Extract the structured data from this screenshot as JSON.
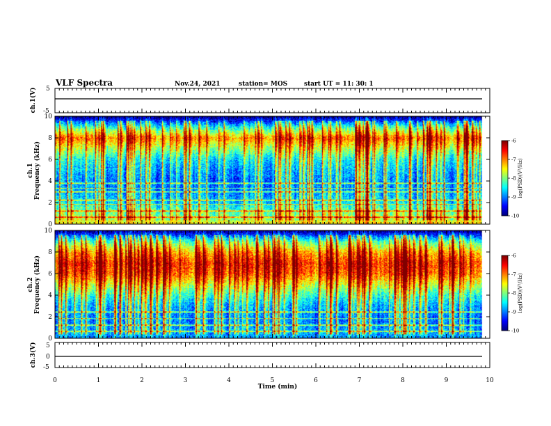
{
  "header": {
    "title": "VLF Spectra",
    "date": "Nov.24, 2021",
    "station": "station= MOS",
    "start_ut": "start  UT =   11: 30: 1"
  },
  "chart_data": [
    {
      "type": "line",
      "panel": "ch1-waveform",
      "ylabel": "ch.1(V)",
      "ylim": [
        -5,
        5
      ],
      "yticks": [
        "5",
        "-5"
      ],
      "xlim": [
        0,
        10
      ],
      "series": [
        {
          "values": [
            0,
            0,
            0,
            0,
            0,
            0,
            0,
            0,
            0,
            0,
            0
          ]
        }
      ]
    },
    {
      "type": "heatmap",
      "panel": "ch1-spectrogram",
      "ylabel": "Frequency (kHz)",
      "channel": "ch.1",
      "ylim": [
        0,
        10
      ],
      "yticks": [
        "0",
        "2",
        "4",
        "6",
        "8",
        "10"
      ],
      "xlim": [
        0,
        10
      ],
      "colorbar": {
        "label": "log(PSD)(V²/Hz)",
        "range": [
          -10,
          -6
        ],
        "ticks": [
          "-6",
          "-7",
          "-8",
          "-9",
          "-10"
        ]
      },
      "freq_profile_khz": [
        0,
        0.5,
        1,
        1.5,
        2,
        3,
        4,
        5,
        6,
        7,
        8,
        9,
        10
      ],
      "freq_profile_logpsd": [
        -7.5,
        -7.8,
        -8.0,
        -8.3,
        -8.6,
        -8.9,
        -9.0,
        -8.8,
        -8.5,
        -7.8,
        -7.0,
        -8.3,
        -10.0
      ]
    },
    {
      "type": "heatmap",
      "panel": "ch2-spectrogram",
      "ylabel": "Frequency (kHz)",
      "channel": "ch.2",
      "ylim": [
        0,
        10
      ],
      "yticks": [
        "0",
        "2",
        "4",
        "6",
        "8",
        "10"
      ],
      "xlim": [
        0,
        10
      ],
      "colorbar": {
        "label": "log(PSD)(V²/Hz)",
        "range": [
          -10,
          -6
        ],
        "ticks": [
          "-6",
          "-7",
          "-8",
          "-9",
          "-10"
        ]
      },
      "freq_profile_khz": [
        0,
        0.5,
        1,
        1.5,
        2,
        3,
        4,
        5,
        6,
        7,
        8,
        9,
        10
      ],
      "freq_profile_logpsd": [
        -9.0,
        -8.8,
        -8.9,
        -9.0,
        -9.0,
        -8.8,
        -8.3,
        -7.6,
        -6.9,
        -6.7,
        -7.2,
        -8.2,
        -10.0
      ]
    },
    {
      "type": "line",
      "panel": "ch3-waveform",
      "ylabel": "ch.3(V)",
      "ylim": [
        -5,
        5
      ],
      "yticks": [
        "5",
        "0",
        "-5"
      ],
      "xlim": [
        0,
        10
      ],
      "xlabel": "Time  (min)",
      "xticks": [
        "0",
        "1",
        "2",
        "3",
        "4",
        "5",
        "6",
        "7",
        "8",
        "9",
        "10"
      ],
      "series": [
        {
          "values": [
            0,
            0,
            0,
            0,
            0,
            0,
            0,
            0,
            0,
            0,
            0
          ]
        }
      ]
    }
  ]
}
